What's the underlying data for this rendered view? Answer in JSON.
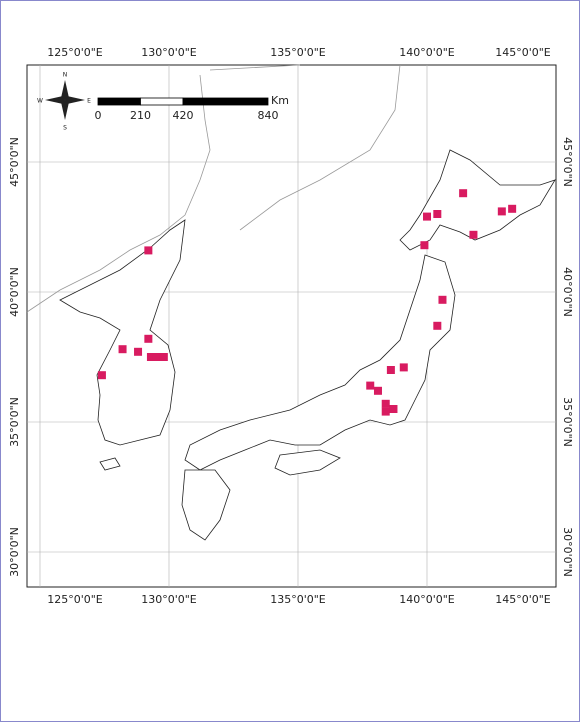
{
  "map": {
    "lon_ticks": [
      {
        "value": 125,
        "label": "125°0'0\"E"
      },
      {
        "value": 130,
        "label": "130°0'0\"E"
      },
      {
        "value": 135,
        "label": "135°0'0\"E"
      },
      {
        "value": 140,
        "label": "140°0'0\"E"
      },
      {
        "value": 145,
        "label": "145°0'0\"E"
      }
    ],
    "lat_ticks": [
      {
        "value": 45,
        "label": "45°0'0\"N"
      },
      {
        "value": 40,
        "label": "40°0'0\"N"
      },
      {
        "value": 35,
        "label": "35°0'0\"N"
      },
      {
        "value": 30,
        "label": "30°0'0\"N"
      }
    ],
    "marker_color": "#d81b60",
    "sites": [
      [
        129.2,
        41.6
      ],
      [
        128.2,
        37.8
      ],
      [
        128.8,
        37.7
      ],
      [
        129.2,
        38.2
      ],
      [
        129.3,
        37.5
      ],
      [
        129.5,
        37.5
      ],
      [
        129.8,
        37.5
      ],
      [
        127.4,
        36.8
      ],
      [
        141.4,
        43.8
      ],
      [
        140.4,
        43.0
      ],
      [
        140.0,
        42.9
      ],
      [
        139.9,
        41.8
      ],
      [
        142.9,
        43.1
      ],
      [
        143.3,
        43.2
      ],
      [
        141.8,
        42.2
      ],
      [
        140.6,
        39.7
      ],
      [
        140.4,
        38.7
      ],
      [
        139.1,
        37.1
      ],
      [
        138.6,
        37.0
      ],
      [
        137.8,
        36.4
      ],
      [
        138.1,
        36.2
      ],
      [
        138.4,
        35.7
      ],
      [
        138.4,
        35.4
      ],
      [
        138.7,
        35.5
      ]
    ],
    "scale_bar": {
      "unit": "Km",
      "ticks": [
        0,
        210,
        420,
        840
      ]
    },
    "compass": {
      "n": "N",
      "s": "S",
      "e": "E",
      "w": "W"
    }
  }
}
